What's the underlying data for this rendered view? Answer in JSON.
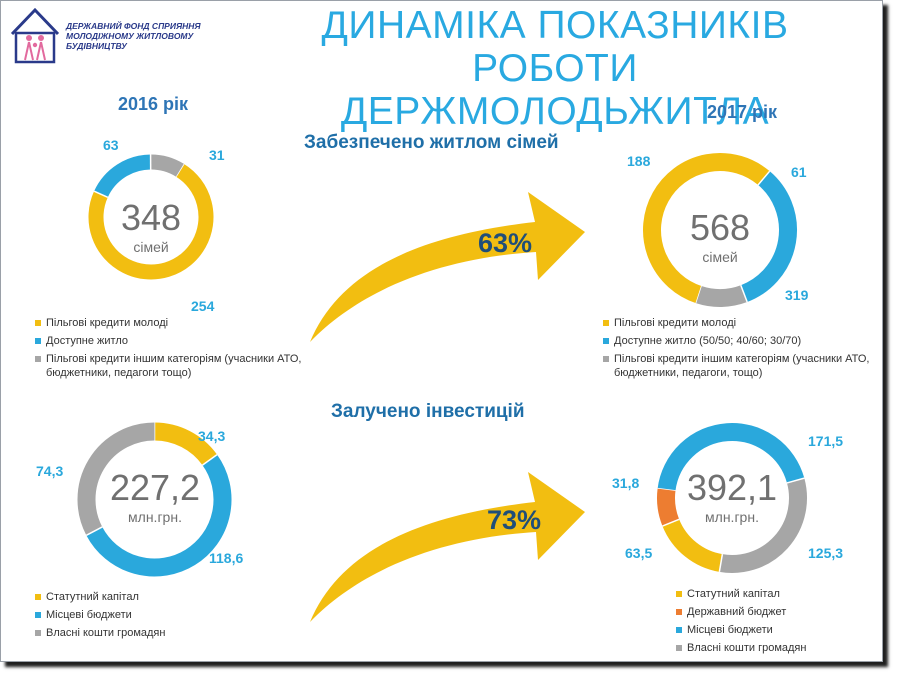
{
  "header": {
    "logo_text_line1": "ДЕРЖАВНИЙ ФОНД СПРИЯННЯ",
    "logo_text_line2": "МОЛОДІЖНОМУ ЖИТЛОВОМУ БУДІВНИЦТВУ",
    "title_line1": "ДИНАМІКА ПОКАЗНИКІВ РОБОТИ",
    "title_line2": "ДЕРЖМОЛОДЬЖИТЛА"
  },
  "years": {
    "left": "2016 рік",
    "right": "2017 рік"
  },
  "sections": {
    "families": {
      "label": "Забезпечено житлом сімей",
      "growth": "63%"
    },
    "investments": {
      "label": "Залучено інвестицій",
      "growth": "73%"
    }
  },
  "colors": {
    "yellow": "#f2be11",
    "blue": "#2aa8dc",
    "gray": "#a6a6a6",
    "orange": "#ed7d31",
    "title": "#29a9e1"
  },
  "chart_data": [
    {
      "type": "pie",
      "donut": true,
      "year": "2016 рік",
      "center_value": "348",
      "center_unit": "сімей",
      "labels": [
        "254",
        "63",
        "31"
      ],
      "series": [
        {
          "name": "Пільгові кредити молоді",
          "value": 254,
          "color": "#f2be11"
        },
        {
          "name": "Доступне житло",
          "value": 63,
          "color": "#2aa8dc"
        },
        {
          "name": "Пільгові кредити іншим категоріям (учасники АТО, бюджетники, педагоги тощо)",
          "value": 31,
          "color": "#a6a6a6"
        }
      ]
    },
    {
      "type": "pie",
      "donut": true,
      "year": "2017 рік",
      "center_value": "568",
      "center_unit": "сімей",
      "labels": [
        "319",
        "188",
        "0",
        "61"
      ],
      "series": [
        {
          "name": "Пільгові кредити молоді",
          "value": 319,
          "color": "#f2be11"
        },
        {
          "name": "Доступне житло  (50/50;  40/60; 30/70)",
          "value": 188,
          "color": "#2aa8dc"
        },
        {
          "name": "",
          "value": 0,
          "color": "#2aa8dc"
        },
        {
          "name": "Пільгові кредити іншим категоріям (учасники АТО, бюджетники, педагоги, тощо)",
          "value": 61,
          "color": "#a6a6a6"
        }
      ]
    },
    {
      "type": "pie",
      "donut": true,
      "year": "2016 рік",
      "center_value": "227,2",
      "center_unit": "млн.грн.",
      "labels": [
        "34,3",
        "118,6",
        "74,3"
      ],
      "series": [
        {
          "name": "Статутний капітал",
          "value": 34.3,
          "color": "#f2be11"
        },
        {
          "name": "Місцеві бюджети",
          "value": 118.6,
          "color": "#2aa8dc"
        },
        {
          "name": "Власні кошти громадян",
          "value": 74.3,
          "color": "#a6a6a6"
        }
      ]
    },
    {
      "type": "pie",
      "donut": true,
      "year": "2017 рік",
      "center_value": "392,1",
      "center_unit": "млн.грн.",
      "labels": [
        "171,5",
        "125,3",
        "63,5",
        "31,8"
      ],
      "series": [
        {
          "name": "Місцеві бюджети",
          "value": 171.5,
          "color": "#2aa8dc"
        },
        {
          "name": "Власні кошти громадян",
          "value": 125.3,
          "color": "#a6a6a6"
        },
        {
          "name": "Статутний капітал",
          "value": 63.5,
          "color": "#f2be11"
        },
        {
          "name": "Державний бюджет",
          "value": 31.8,
          "color": "#ed7d31"
        }
      ]
    }
  ],
  "legends": {
    "families_2016": [
      {
        "label": "Пільгові кредити молоді",
        "color": "#f2be11"
      },
      {
        "label": "Доступне житло",
        "color": "#2aa8dc"
      },
      {
        "label": "Пільгові кредити іншим категоріям (учасники АТО, бюджетники, педагоги тощо)",
        "color": "#a6a6a6"
      }
    ],
    "families_2017": [
      {
        "label": "Пільгові кредити молоді",
        "color": "#f2be11"
      },
      {
        "label": "Доступне житло  (50/50;  40/60; 30/70)",
        "color": "#2aa8dc"
      },
      {
        "label": "Пільгові кредити іншим категоріям (учасники АТО, бюджетники, педагоги, тощо)",
        "color": "#a6a6a6"
      }
    ],
    "invest_2016": [
      {
        "label": "Статутний капітал",
        "color": "#f2be11"
      },
      {
        "label": "Місцеві бюджети",
        "color": "#2aa8dc"
      },
      {
        "label": "Власні кошти громадян",
        "color": "#a6a6a6"
      }
    ],
    "invest_2017": [
      {
        "label": "Статутний капітал",
        "color": "#f2be11"
      },
      {
        "label": "Державний бюджет",
        "color": "#ed7d31"
      },
      {
        "label": "Місцеві бюджети",
        "color": "#2aa8dc"
      },
      {
        "label": "Власні кошти громадян",
        "color": "#a6a6a6"
      }
    ]
  }
}
